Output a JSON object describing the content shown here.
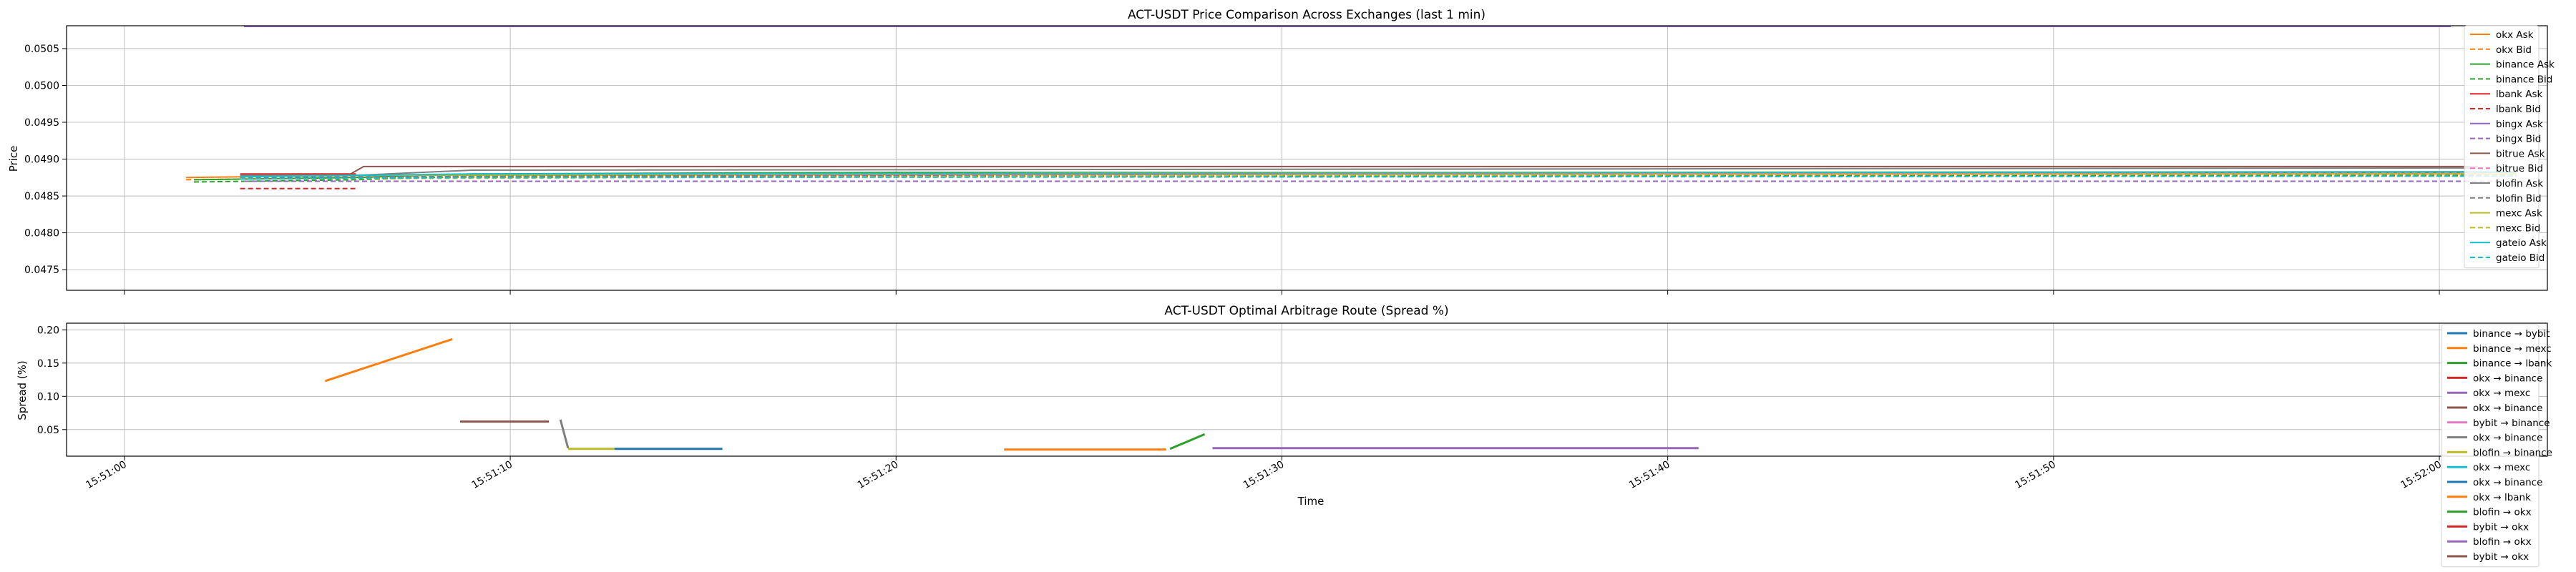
{
  "chart_data": [
    {
      "type": "line",
      "title": "ACT-USDT Price Comparison Across Exchanges (last 1 min)",
      "ylabel": "Price",
      "xlabel": "",
      "ylim": [
        0.04722,
        0.05081
      ],
      "yticks": [
        "0.0475",
        "0.0480",
        "0.0485",
        "0.0490",
        "0.0495",
        "0.0500",
        "0.0505"
      ],
      "ytick_values": [
        0.0475,
        0.048,
        0.0485,
        0.049,
        0.0495,
        0.05,
        0.0505
      ],
      "grid": true,
      "legend": "upper-right",
      "series": [
        {
          "name": "okx Ask",
          "color": "#ff7f0e",
          "dash": false,
          "points": [
            [
              "15:51:01.6",
              0.04875
            ],
            [
              "15:51:06.0",
              0.04878
            ],
            [
              "15:51:40.0",
              0.0488
            ],
            [
              "15:52:02.0",
              0.0488
            ]
          ]
        },
        {
          "name": "okx Bid",
          "color": "#ff7f0e",
          "dash": true,
          "points": [
            [
              "15:51:01.6",
              0.04872
            ],
            [
              "15:51:06.0",
              0.04875
            ],
            [
              "15:51:40.0",
              0.04877
            ],
            [
              "15:52:02.0",
              0.04877
            ]
          ]
        },
        {
          "name": "binance Ask",
          "color": "#2ca02c",
          "dash": false,
          "points": [
            [
              "15:51:01.8",
              0.04872
            ],
            [
              "15:51:06.0",
              0.04875
            ],
            [
              "15:51:09.0",
              0.0488
            ],
            [
              "15:51:20.0",
              0.04882
            ],
            [
              "15:52:02.0",
              0.04882
            ]
          ]
        },
        {
          "name": "binance Bid",
          "color": "#2ca02c",
          "dash": true,
          "points": [
            [
              "15:51:01.8",
              0.04869
            ],
            [
              "15:51:06.0",
              0.04872
            ],
            [
              "15:51:09.0",
              0.04877
            ],
            [
              "15:52:02.0",
              0.04878
            ]
          ]
        },
        {
          "name": "lbank Ask",
          "color": "#d62728",
          "dash": false,
          "points": [
            [
              "15:51:03.0",
              0.0488
            ],
            [
              "15:51:06.0",
              0.0488
            ]
          ]
        },
        {
          "name": "lbank Bid",
          "color": "#d62728",
          "dash": true,
          "points": [
            [
              "15:51:03.0",
              0.0486
            ],
            [
              "15:51:06.0",
              0.0486
            ]
          ]
        },
        {
          "name": "bingx Ask",
          "color": "#9467bd",
          "dash": false,
          "points": [
            [
              "15:51:03.1",
              0.0508
            ],
            [
              "15:52:00.3",
              0.0508
            ]
          ]
        },
        {
          "name": "bingx Bid",
          "color": "#9467bd",
          "dash": true,
          "points": [
            [
              "15:51:03.1",
              0.0487
            ],
            [
              "15:52:01.5",
              0.0487
            ]
          ]
        },
        {
          "name": "bitrue Ask",
          "color": "#8c564b",
          "dash": false,
          "points": [
            [
              "15:51:03.0",
              0.04878
            ],
            [
              "15:51:05.8",
              0.04878
            ],
            [
              "15:51:06.2",
              0.0489
            ],
            [
              "15:52:01.0",
              0.0489
            ]
          ]
        },
        {
          "name": "bitrue Bid",
          "color": "#e377c2",
          "dash": true,
          "points": [
            [
              "15:51:03.0",
              0.04876
            ],
            [
              "15:51:06.0",
              0.04878
            ],
            [
              "15:52:01.0",
              0.04882
            ]
          ]
        },
        {
          "name": "blofin Ask",
          "color": "#7f7f7f",
          "dash": false,
          "points": [
            [
              "15:51:03.0",
              0.04878
            ],
            [
              "15:51:06.0",
              0.04878
            ],
            [
              "15:51:09.0",
              0.04885
            ],
            [
              "15:52:01.0",
              0.04888
            ]
          ]
        },
        {
          "name": "blofin Bid",
          "color": "#7f7f7f",
          "dash": true,
          "points": [
            [
              "15:51:03.0",
              0.04875
            ],
            [
              "15:51:09.0",
              0.04877
            ],
            [
              "15:52:01.0",
              0.0488
            ]
          ]
        },
        {
          "name": "mexc Ask",
          "color": "#bcbd22",
          "dash": false,
          "points": [
            [
              "15:51:03.0",
              0.04876
            ],
            [
              "15:51:06.0",
              0.04878
            ],
            [
              "15:51:30.0",
              0.04882
            ],
            [
              "15:52:02.0",
              0.04883
            ]
          ]
        },
        {
          "name": "mexc Bid",
          "color": "#bcbd22",
          "dash": true,
          "points": [
            [
              "15:51:03.0",
              0.04873
            ],
            [
              "15:51:30.0",
              0.04878
            ],
            [
              "15:52:02.0",
              0.0488
            ]
          ]
        },
        {
          "name": "gateio Ask",
          "color": "#17becf",
          "dash": false,
          "points": [
            [
              "15:51:03.0",
              0.04876
            ],
            [
              "15:51:09.0",
              0.0488
            ],
            [
              "15:52:02.0",
              0.04883
            ]
          ]
        },
        {
          "name": "gateio Bid",
          "color": "#17becf",
          "dash": true,
          "points": [
            [
              "15:51:03.0",
              0.04873
            ],
            [
              "15:51:09.0",
              0.04875
            ],
            [
              "15:52:02.0",
              0.04877
            ]
          ]
        }
      ]
    },
    {
      "type": "line",
      "title": "ACT-USDT Optimal Arbitrage Route (Spread %)",
      "ylabel": "Spread (%)",
      "xlabel": "Time",
      "ylim": [
        0.01,
        0.21
      ],
      "yticks": [
        "0.05",
        "0.10",
        "0.15",
        "0.20"
      ],
      "ytick_values": [
        0.05,
        0.1,
        0.15,
        0.2
      ],
      "xticks": [
        "15:51:00",
        "15:51:10",
        "15:51:20",
        "15:51:30",
        "15:51:40",
        "15:51:50",
        "15:52:00"
      ],
      "grid": true,
      "legend": "upper-right",
      "series": [
        {
          "name": "binance → bybit",
          "color": "#1f77b4",
          "points": []
        },
        {
          "name": "binance → mexc",
          "color": "#ff7f0e",
          "points": [
            [
              "15:51:05.2",
              0.123
            ],
            [
              "15:51:08.5",
              0.186
            ]
          ]
        },
        {
          "name": "binance → lbank",
          "color": "#2ca02c",
          "points": []
        },
        {
          "name": "okx → binance",
          "color": "#d62728",
          "points": []
        },
        {
          "name": "okx → mexc",
          "color": "#9467bd",
          "points": []
        },
        {
          "name": "okx → binance",
          "color": "#8c564b",
          "points": [
            [
              "15:51:08.7",
              0.062
            ],
            [
              "15:51:11.0",
              0.062
            ]
          ]
        },
        {
          "name": "bybit → binance",
          "color": "#e377c2",
          "points": []
        },
        {
          "name": "okx → binance",
          "color": "#7f7f7f",
          "points": [
            [
              "15:51:11.3",
              0.065
            ],
            [
              "15:51:11.5",
              0.022
            ]
          ]
        },
        {
          "name": "blofin → binance",
          "color": "#bcbd22",
          "points": [
            [
              "15:51:11.5",
              0.021
            ],
            [
              "15:51:12.7",
              0.021
            ]
          ]
        },
        {
          "name": "okx → mexc",
          "color": "#17becf",
          "points": []
        },
        {
          "name": "okx → binance",
          "color": "#1f77b4",
          "points": [
            [
              "15:51:12.7",
              0.021
            ],
            [
              "15:51:15.5",
              0.021
            ]
          ]
        },
        {
          "name": "okx → lbank",
          "color": "#ff7f0e",
          "points": [
            [
              "15:51:22.8",
              0.02
            ],
            [
              "15:51:27.0",
              0.02
            ]
          ]
        },
        {
          "name": "blofin → okx",
          "color": "#2ca02c",
          "points": [
            [
              "15:51:27.1",
              0.021
            ],
            [
              "15:51:28.0",
              0.043
            ]
          ]
        },
        {
          "name": "bybit → okx",
          "color": "#d62728",
          "points": []
        },
        {
          "name": "blofin → okx",
          "color": "#9467bd",
          "points": [
            [
              "15:51:28.2",
              0.022
            ],
            [
              "15:51:40.8",
              0.022
            ]
          ]
        },
        {
          "name": "bybit → okx",
          "color": "#8c564b",
          "points": []
        }
      ]
    }
  ]
}
